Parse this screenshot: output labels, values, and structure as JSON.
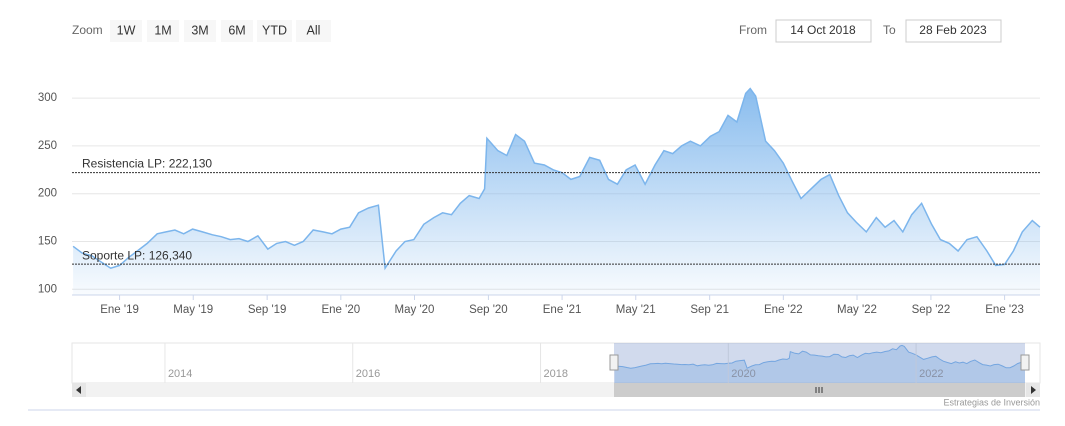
{
  "range_selector": {
    "zoom_label": "Zoom",
    "buttons": [
      "1W",
      "1M",
      "3M",
      "6M",
      "YTD",
      "All"
    ],
    "from_label": "From",
    "from": "14 Oct 2018",
    "to_label": "To",
    "to": "28 Feb 2023"
  },
  "chart_data": {
    "type": "area",
    "series": [
      {
        "color": "#7cb5ec",
        "x": [
          2018.79,
          2018.83,
          2018.875,
          2018.92,
          2018.96,
          2019.0,
          2019.04,
          2019.08,
          2019.125,
          2019.17,
          2019.21,
          2019.25,
          2019.29,
          2019.33,
          2019.375,
          2019.42,
          2019.46,
          2019.5,
          2019.54,
          2019.58,
          2019.625,
          2019.67,
          2019.71,
          2019.75,
          2019.79,
          2019.83,
          2019.875,
          2019.92,
          2019.96,
          2020.0,
          2020.04,
          2020.08,
          2020.125,
          2020.17,
          2020.2,
          2020.25,
          2020.29,
          2020.33,
          2020.375,
          2020.42,
          2020.46,
          2020.5,
          2020.54,
          2020.58,
          2020.625,
          2020.65,
          2020.66,
          2020.71,
          2020.75,
          2020.79,
          2020.83,
          2020.875,
          2020.92,
          2020.96,
          2021.0,
          2021.04,
          2021.08,
          2021.125,
          2021.17,
          2021.21,
          2021.25,
          2021.29,
          2021.33,
          2021.375,
          2021.42,
          2021.46,
          2021.5,
          2021.54,
          2021.58,
          2021.625,
          2021.67,
          2021.71,
          2021.75,
          2021.79,
          2021.83,
          2021.85,
          2021.875,
          2021.92,
          2021.96,
          2022.0,
          2022.04,
          2022.08,
          2022.125,
          2022.17,
          2022.21,
          2022.25,
          2022.29,
          2022.33,
          2022.375,
          2022.42,
          2022.46,
          2022.5,
          2022.54,
          2022.58,
          2022.625,
          2022.67,
          2022.71,
          2022.75,
          2022.79,
          2022.83,
          2022.875,
          2022.92,
          2022.96,
          2023.0,
          2023.04,
          2023.08,
          2023.125,
          2023.16
        ],
        "values": [
          145,
          138,
          135,
          128,
          122,
          125,
          133,
          140,
          148,
          158,
          160,
          162,
          158,
          163,
          160,
          157,
          155,
          152,
          153,
          150,
          156,
          142,
          148,
          150,
          146,
          150,
          162,
          160,
          158,
          163,
          165,
          180,
          185,
          188,
          122,
          140,
          150,
          152,
          168,
          175,
          180,
          178,
          190,
          198,
          195,
          205,
          258,
          245,
          240,
          262,
          255,
          232,
          230,
          225,
          222,
          215,
          218,
          238,
          235,
          215,
          210,
          225,
          230,
          210,
          230,
          245,
          242,
          250,
          255,
          250,
          260,
          265,
          282,
          275,
          305,
          310,
          302,
          255,
          245,
          232,
          213,
          195,
          205,
          215,
          220,
          198,
          180,
          170,
          160,
          175,
          165,
          172,
          160,
          178,
          190,
          168,
          152,
          148,
          140,
          152,
          155,
          140,
          125,
          126,
          140,
          160,
          172,
          165
        ]
      }
    ],
    "xlim": [
      2018.785,
      2023.16
    ],
    "ylim": [
      94,
      319
    ],
    "yticks": [
      100,
      150,
      200,
      250,
      300
    ],
    "xticks": [
      {
        "value": 2019.0,
        "label": "Ene '19"
      },
      {
        "value": 2019.333,
        "label": "May '19"
      },
      {
        "value": 2019.667,
        "label": "Sep '19"
      },
      {
        "value": 2020.0,
        "label": "Ene '20"
      },
      {
        "value": 2020.333,
        "label": "May '20"
      },
      {
        "value": 2020.667,
        "label": "Sep '20"
      },
      {
        "value": 2021.0,
        "label": "Ene '21"
      },
      {
        "value": 2021.333,
        "label": "May '21"
      },
      {
        "value": 2021.667,
        "label": "Sep '21"
      },
      {
        "value": 2022.0,
        "label": "Ene '22"
      },
      {
        "value": 2022.333,
        "label": "May '22"
      },
      {
        "value": 2022.667,
        "label": "Sep '22"
      },
      {
        "value": 2023.0,
        "label": "Ene '23"
      }
    ],
    "grid": true,
    "plot_lines": [
      {
        "value": 222.13,
        "label": "Resistencia LP: 222,130"
      },
      {
        "value": 126.34,
        "label": "Soporte LP: 126,340"
      }
    ],
    "navigator": {
      "xlim": [
        2013.01,
        2023.16
      ],
      "ylim": [
        0,
        330
      ],
      "xticks": [
        2014,
        2016,
        2018,
        2020,
        2022
      ]
    }
  },
  "credits": "Estrategias de Inversión"
}
